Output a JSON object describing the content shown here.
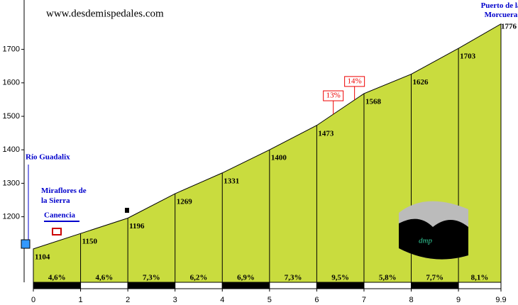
{
  "chart_data": {
    "type": "area",
    "title": "www.desdemispedales.com",
    "x": [
      0,
      1,
      2,
      3,
      4,
      5,
      6,
      7,
      8,
      9,
      9.9
    ],
    "series": [
      {
        "color": "#c9dc3e",
        "values": [
          1104,
          1150,
          1196,
          1269,
          1331,
          1400,
          1473,
          1568,
          1626,
          1703,
          1776
        ]
      }
    ],
    "xlim": [
      0,
      9.9
    ],
    "xticks": [
      0,
      1,
      2,
      3,
      4,
      5,
      6,
      7,
      8,
      9,
      9.9
    ],
    "ylim": [
      1000,
      1800
    ],
    "yticks": [
      1200,
      1300,
      1400,
      1500,
      1600,
      1700
    ],
    "segments": {
      "values": [
        4.6,
        4.6,
        7.3,
        6.2,
        6.9,
        7.3,
        9.5,
        5.8,
        7.7,
        8.1
      ],
      "value_labels": [
        "4,6%",
        "4,6%",
        "7,3%",
        "6,2%",
        "6,9%",
        "7,3%",
        "9,5%",
        "5,8%",
        "7,7%",
        "8,1%"
      ]
    },
    "steep_labels": [
      {
        "x": 6.35,
        "value": 13,
        "label": "13%"
      },
      {
        "x": 6.8,
        "value": 14,
        "label": "14%"
      }
    ],
    "places": [
      "Río Guadalix",
      "Miraflores de la Sierra",
      "Canencia",
      "Puerto de la Morcuera"
    ],
    "logo": "dmp"
  }
}
